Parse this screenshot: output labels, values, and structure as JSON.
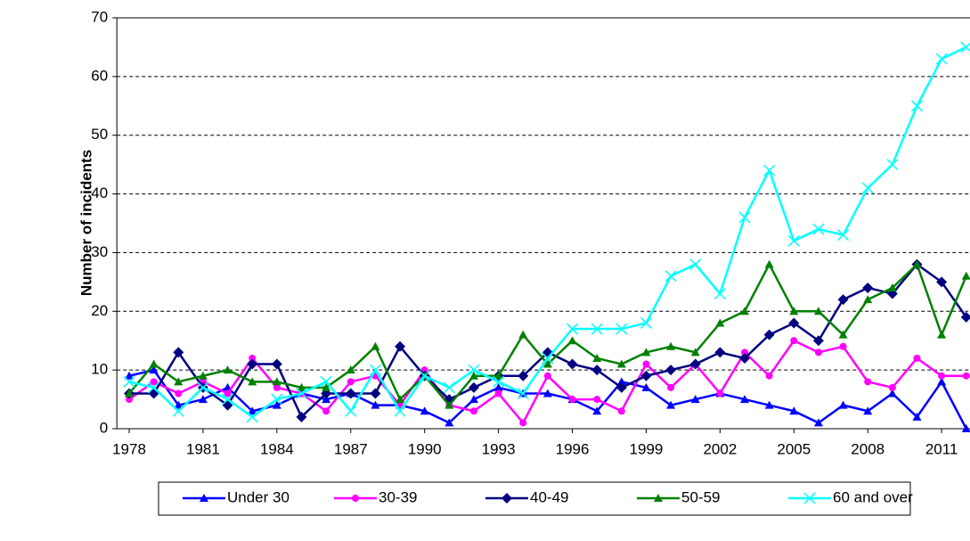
{
  "chart_data": {
    "type": "line",
    "y_label": "Number of incidents",
    "x": [
      1978,
      1979,
      1980,
      1981,
      1982,
      1983,
      1984,
      1985,
      1986,
      1987,
      1988,
      1989,
      1990,
      1991,
      1992,
      1993,
      1994,
      1995,
      1996,
      1997,
      1998,
      1999,
      2000,
      2001,
      2002,
      2003,
      2004,
      2005,
      2006,
      2007,
      2008,
      2009,
      2010,
      2011,
      2012
    ],
    "xlim": [
      1977.5,
      2012.5
    ],
    "xticks": [
      1978,
      1981,
      1984,
      1987,
      1990,
      1993,
      1996,
      1999,
      2002,
      2005,
      2008,
      2011
    ],
    "ylim": [
      0,
      70
    ],
    "yticks": [
      0,
      10,
      20,
      30,
      40,
      50,
      60,
      70
    ],
    "grid": true,
    "legend": "bottom",
    "series": [
      {
        "name": "Under 30",
        "color": "#0000ff",
        "marker": "triangle",
        "values": [
          9,
          10,
          4,
          5,
          7,
          3,
          4,
          6,
          5,
          6,
          4,
          4,
          3,
          1,
          5,
          7,
          6,
          6,
          5,
          3,
          8,
          7,
          4,
          5,
          6,
          5,
          4,
          3,
          1,
          4,
          3,
          6,
          2,
          8,
          0
        ]
      },
      {
        "name": "30-39",
        "color": "#ff00ff",
        "marker": "circle",
        "values": [
          5,
          8,
          6,
          8,
          6,
          12,
          7,
          6,
          3,
          8,
          9,
          4,
          10,
          4,
          3,
          6,
          1,
          9,
          5,
          5,
          3,
          11,
          7,
          11,
          6,
          13,
          9,
          15,
          13,
          14,
          8,
          7,
          12,
          9,
          9
        ]
      },
      {
        "name": "40-49",
        "color": "#000080",
        "marker": "diamond",
        "values": [
          6,
          6,
          13,
          7,
          4,
          11,
          11,
          2,
          6,
          6,
          6,
          14,
          9,
          5,
          7,
          9,
          9,
          13,
          11,
          10,
          7,
          9,
          10,
          11,
          13,
          12,
          16,
          18,
          15,
          22,
          24,
          23,
          28,
          25,
          19
        ]
      },
      {
        "name": "50-59",
        "color": "#008000",
        "marker": "triangle",
        "values": [
          6,
          11,
          8,
          9,
          10,
          8,
          8,
          7,
          7,
          10,
          14,
          5,
          9,
          4,
          9,
          9,
          16,
          11,
          15,
          12,
          11,
          13,
          14,
          13,
          18,
          20,
          28,
          20,
          20,
          16,
          22,
          24,
          28,
          16,
          26
        ]
      },
      {
        "name": "60 and over",
        "color": "#00ffff",
        "marker": "x",
        "values": [
          8,
          7,
          3,
          7,
          5,
          2,
          5,
          6,
          8,
          3,
          10,
          3,
          9,
          7,
          10,
          8,
          6,
          12,
          17,
          17,
          17,
          18,
          26,
          28,
          23,
          36,
          44,
          32,
          34,
          33,
          41,
          45,
          55,
          63,
          65
        ]
      }
    ]
  }
}
